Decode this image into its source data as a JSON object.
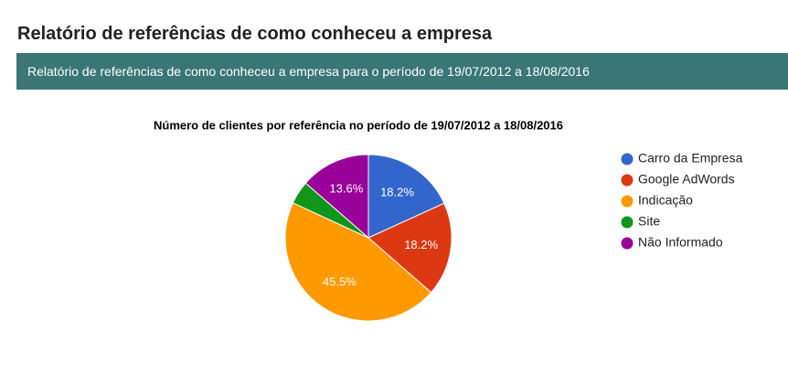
{
  "page_title": "Relatório de referências de como conheceu a empresa",
  "banner": "Relatório de referências de como conheceu a empresa para o período de 19/07/2012 a 18/08/2016",
  "chart_data": {
    "type": "pie",
    "title": "Número de clientes por referência no período de 19/07/2012 a 18/08/2016",
    "categories": [
      "Carro da Empresa",
      "Google AdWords",
      "Indicação",
      "Site",
      "Não Informado"
    ],
    "values": [
      18.2,
      18.2,
      45.5,
      4.5,
      13.6
    ],
    "value_labels": [
      "18.2%",
      "18.2%",
      "45.5%",
      null,
      "13.6%"
    ],
    "colors": [
      "#3366cc",
      "#dc3912",
      "#ff9900",
      "#109618",
      "#990099"
    ],
    "legend": "right"
  }
}
